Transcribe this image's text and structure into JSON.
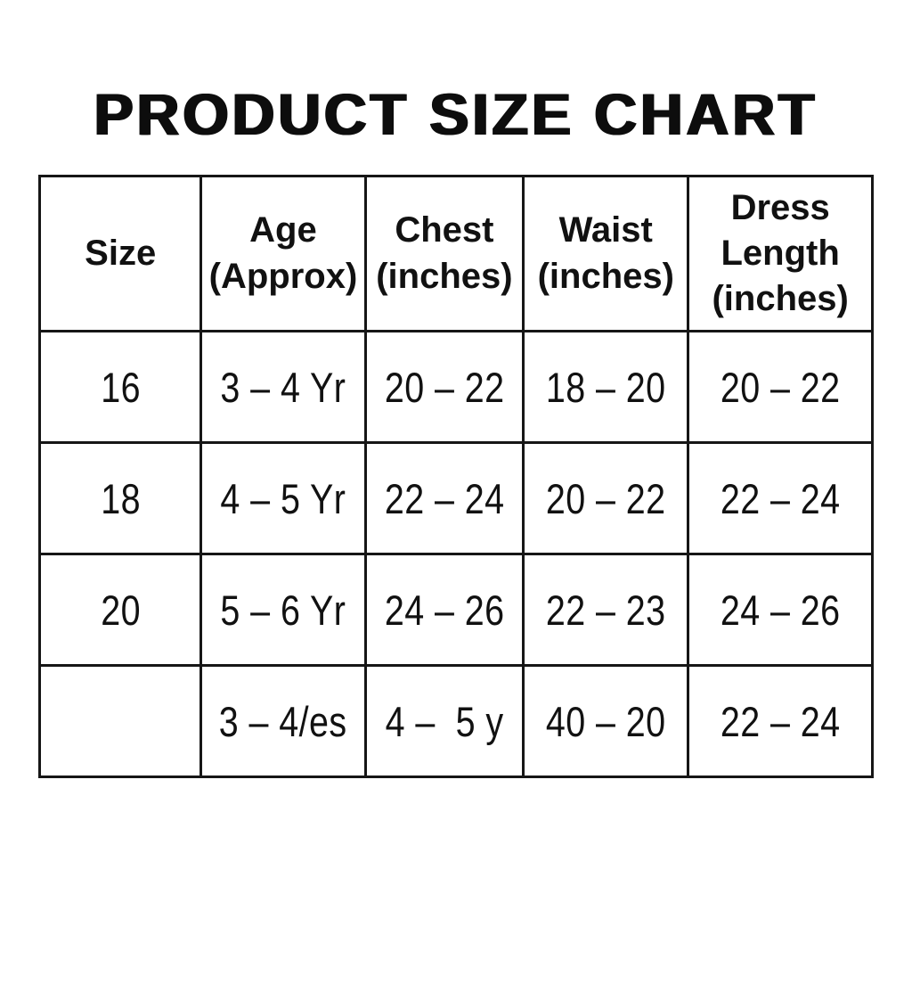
{
  "title": "PRODUCT SIZE CHART",
  "colors": {
    "background": "#ffffff",
    "text": "#111111",
    "border": "#161616"
  },
  "table": {
    "headers": [
      "Size",
      "Age\n(Approx)",
      "Chest\n(inches)",
      "Waist\n(inches)",
      "Dress\nLength\n(inches)"
    ],
    "rows": [
      [
        "16",
        "3 – 4 Yr",
        "20 – 22",
        "18 – 20",
        "20 – 22"
      ],
      [
        "18",
        "4 – 5 Yr",
        "22 – 24",
        "20 – 22",
        "22 – 24"
      ],
      [
        "20",
        "5 – 6 Yr",
        "24 – 26",
        "22 – 23",
        "24 – 26"
      ],
      [
        "",
        "3 – 4/es",
        "4 –  5 y",
        "40 – 20",
        "22 – 24"
      ]
    ]
  },
  "chart_data": {
    "type": "table",
    "title": "PRODUCT SIZE CHART",
    "columns": [
      "Size",
      "Age (Approx)",
      "Chest (inches)",
      "Waist (inches)",
      "Dress Length (inches)"
    ],
    "rows": [
      [
        "16",
        "3 – 4 Yr",
        "20 – 22",
        "18 – 20",
        "20 – 22"
      ],
      [
        "18",
        "4 – 5 Yr",
        "22 – 24",
        "20 – 22",
        "22 – 24"
      ],
      [
        "20",
        "5 – 6 Yr",
        "24 – 26",
        "22 – 23",
        "24 – 26"
      ],
      [
        "",
        "3 – 4/es",
        "4 –  5 y",
        "40 – 20",
        "22 – 24"
      ]
    ]
  }
}
